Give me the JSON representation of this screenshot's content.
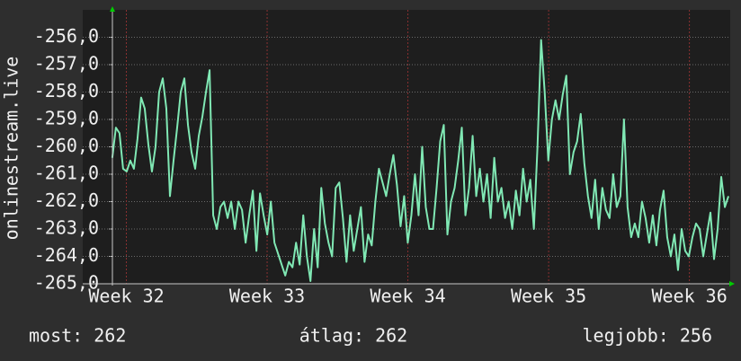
{
  "chart_data": {
    "type": "line",
    "ylabel": "onlinestream.live",
    "ylim": [
      -265,
      -255
    ],
    "yticks": [
      {
        "value": -265,
        "label": "-265,0"
      },
      {
        "value": -264,
        "label": "-264,0"
      },
      {
        "value": -263,
        "label": "-263,0"
      },
      {
        "value": -262,
        "label": "-262,0"
      },
      {
        "value": -261,
        "label": "-261,0"
      },
      {
        "value": -260,
        "label": "-260,0"
      },
      {
        "value": -259,
        "label": "-259,0"
      },
      {
        "value": -258,
        "label": "-258,0"
      },
      {
        "value": -257,
        "label": "-257,0"
      },
      {
        "value": -256,
        "label": "-256,0"
      }
    ],
    "xlim": [
      31.69,
      36.29
    ],
    "xticks": [
      {
        "value": 32,
        "label": "Week 32"
      },
      {
        "value": 33,
        "label": "Week 33"
      },
      {
        "value": 34,
        "label": "Week 34"
      },
      {
        "value": 35,
        "label": "Week 35"
      },
      {
        "value": 36,
        "label": "Week 36"
      }
    ],
    "grid": true,
    "series": [
      {
        "color": "#80e8b4",
        "x": [
          31.9,
          31.9256,
          31.9512,
          31.9768,
          32.0024,
          32.028,
          32.0536,
          32.0792,
          32.1048,
          32.1304,
          32.156,
          32.1816,
          32.2072,
          32.2328,
          32.2584,
          32.284,
          32.3096,
          32.3352,
          32.3608,
          32.3864,
          32.412,
          32.4376,
          32.4632,
          32.4888,
          32.5144,
          32.54,
          32.5656,
          32.5912,
          32.6168,
          32.6424,
          32.668,
          32.6936,
          32.7192,
          32.7448,
          32.7704,
          32.796,
          32.8216,
          32.8472,
          32.8728,
          32.8984,
          32.924,
          32.9496,
          32.9752,
          33.0008,
          33.0264,
          33.052,
          33.0776,
          33.1032,
          33.1288,
          33.1544,
          33.18,
          33.2056,
          33.2312,
          33.2568,
          33.2824,
          33.308,
          33.3336,
          33.3592,
          33.3848,
          33.4104,
          33.436,
          33.4616,
          33.4872,
          33.5128,
          33.5384,
          33.564,
          33.5896,
          33.6152,
          33.6408,
          33.6664,
          33.692,
          33.7176,
          33.7432,
          33.7688,
          33.7944,
          33.82,
          33.8456,
          33.8712,
          33.8968,
          33.9224,
          33.948,
          33.9736,
          33.9992,
          34.0248,
          34.0504,
          34.076,
          34.1016,
          34.1272,
          34.1528,
          34.1784,
          34.204,
          34.2296,
          34.2552,
          34.2808,
          34.3064,
          34.332,
          34.3576,
          34.3832,
          34.4088,
          34.4344,
          34.46,
          34.4856,
          34.5112,
          34.5368,
          34.5624,
          34.588,
          34.6136,
          34.6392,
          34.6648,
          34.6904,
          34.716,
          34.7416,
          34.7672,
          34.7928,
          34.8184,
          34.844,
          34.8696,
          34.8952,
          34.9208,
          34.9464,
          34.972,
          34.9976,
          35.0232,
          35.0488,
          35.0744,
          35.1,
          35.1256,
          35.1512,
          35.1768,
          35.2024,
          35.228,
          35.2536,
          35.2792,
          35.3048,
          35.3304,
          35.356,
          35.3816,
          35.4072,
          35.4328,
          35.4584,
          35.484,
          35.5096,
          35.5352,
          35.5608,
          35.5864,
          35.612,
          35.6376,
          35.6632,
          35.6888,
          35.7144,
          35.74,
          35.7656,
          35.7912,
          35.8168,
          35.8424,
          35.868,
          35.8936,
          35.9192,
          35.9448,
          35.9704,
          35.996,
          36.0216,
          36.0472,
          36.0728,
          36.0984,
          36.124,
          36.1496,
          36.1752,
          36.2008,
          36.2264,
          36.252,
          36.2776
        ],
        "values": [
          -260.4,
          -259.3,
          -259.5,
          -260.8,
          -260.9,
          -260.5,
          -260.8,
          -259.7,
          -258.2,
          -258.6,
          -259.9,
          -260.9,
          -260.0,
          -258.0,
          -257.5,
          -258.6,
          -261.8,
          -260.5,
          -259.3,
          -258.0,
          -257.5,
          -259.2,
          -260.2,
          -260.8,
          -259.6,
          -258.9,
          -258.0,
          -257.2,
          -262.5,
          -263.0,
          -262.2,
          -262.0,
          -262.6,
          -262.0,
          -263.0,
          -262.0,
          -262.3,
          -263.5,
          -262.5,
          -261.6,
          -263.8,
          -261.7,
          -262.5,
          -263.2,
          -262.0,
          -263.5,
          -263.9,
          -264.3,
          -264.7,
          -264.2,
          -264.4,
          -263.5,
          -264.3,
          -262.5,
          -264.0,
          -264.9,
          -263.0,
          -264.4,
          -261.5,
          -262.8,
          -263.5,
          -264.0,
          -261.5,
          -261.3,
          -262.6,
          -264.2,
          -262.5,
          -263.8,
          -263.0,
          -262.2,
          -264.2,
          -263.2,
          -263.6,
          -262.0,
          -260.8,
          -261.3,
          -261.8,
          -261.0,
          -260.3,
          -261.4,
          -262.9,
          -261.8,
          -263.5,
          -262.5,
          -261.0,
          -262.5,
          -260.0,
          -262.2,
          -263.0,
          -263.0,
          -261.5,
          -259.8,
          -259.2,
          -263.2,
          -262.0,
          -261.5,
          -260.5,
          -259.3,
          -262.5,
          -261.5,
          -259.6,
          -261.8,
          -260.8,
          -262.0,
          -261.0,
          -262.6,
          -260.4,
          -262.0,
          -261.5,
          -262.6,
          -262.0,
          -263.0,
          -261.6,
          -262.5,
          -260.8,
          -262.0,
          -261.2,
          -263.0,
          -260.0,
          -256.1,
          -258.0,
          -260.5,
          -259.0,
          -258.3,
          -259.0,
          -258.1,
          -257.4,
          -261.0,
          -260.2,
          -259.8,
          -258.8,
          -260.6,
          -261.8,
          -262.6,
          -261.2,
          -263.0,
          -261.5,
          -262.3,
          -262.6,
          -261.0,
          -262.2,
          -261.8,
          -259.0,
          -262.2,
          -263.3,
          -262.8,
          -263.3,
          -262.0,
          -262.6,
          -263.5,
          -262.5,
          -263.6,
          -262.3,
          -261.6,
          -263.3,
          -264.0,
          -263.2,
          -264.5,
          -263.0,
          -263.8,
          -264.0,
          -263.3,
          -262.8,
          -263.0,
          -264.0,
          -263.2,
          -262.4,
          -264.1,
          -263.0,
          -261.1,
          -262.2,
          -261.8
        ]
      }
    ],
    "footer": [
      "most: 262",
      "átlag: 262",
      "legjobb: 256"
    ]
  }
}
